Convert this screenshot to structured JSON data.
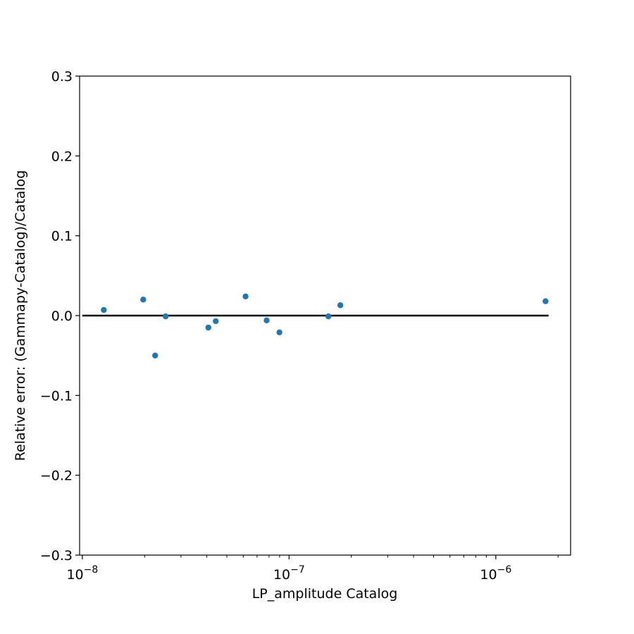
{
  "chart_data": {
    "type": "scatter",
    "title": "",
    "xlabel": "LP_amplitude Catalog",
    "ylabel": "Relative error: (Gammapy-Catalog)/Catalog",
    "x_scale": "log",
    "xlim": [
      9.7e-09,
      2.3e-06
    ],
    "ylim": [
      -0.3,
      0.3
    ],
    "grid": false,
    "x_ticks": [
      {
        "value": 1e-08,
        "base": "10",
        "exp": "−8"
      },
      {
        "value": 1e-07,
        "base": "10",
        "exp": "−7"
      },
      {
        "value": 1e-06,
        "base": "10",
        "exp": "−6"
      }
    ],
    "y_ticks": [
      {
        "value": 0.3,
        "label": "0.3"
      },
      {
        "value": 0.2,
        "label": "0.2"
      },
      {
        "value": 0.1,
        "label": "0.1"
      },
      {
        "value": 0.0,
        "label": "0.0"
      },
      {
        "value": -0.1,
        "label": "−0.1"
      },
      {
        "value": -0.2,
        "label": "−0.2"
      },
      {
        "value": -0.3,
        "label": "−0.3"
      }
    ],
    "reference_line": {
      "y": 0.0,
      "x_from": 1e-08,
      "x_to": 1.8e-06,
      "color": "#000000"
    },
    "marker_color": "#1f77b4",
    "points": [
      {
        "x": 1.27e-08,
        "y": 0.007
      },
      {
        "x": 1.97e-08,
        "y": 0.02
      },
      {
        "x": 2.25e-08,
        "y": -0.05
      },
      {
        "x": 2.53e-08,
        "y": -0.001
      },
      {
        "x": 4.07e-08,
        "y": -0.015
      },
      {
        "x": 4.42e-08,
        "y": -0.007
      },
      {
        "x": 6.16e-08,
        "y": 0.024
      },
      {
        "x": 7.79e-08,
        "y": -0.006
      },
      {
        "x": 8.98e-08,
        "y": -0.021
      },
      {
        "x": 1.55e-07,
        "y": -0.001
      },
      {
        "x": 1.77e-07,
        "y": 0.013
      },
      {
        "x": 1.74e-06,
        "y": 0.018
      }
    ]
  }
}
